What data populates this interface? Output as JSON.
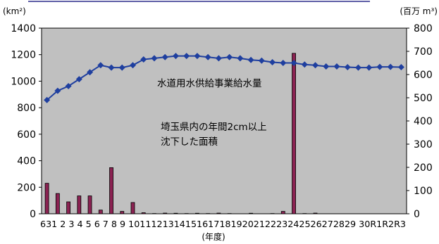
{
  "chart_data": {
    "type": "bar",
    "left_unit": "(km²)",
    "right_unit": "(百万 m³)",
    "xlabel": "(年度)",
    "left_axis": {
      "min": 0,
      "max": 1400,
      "ticks": [
        0,
        200,
        400,
        600,
        800,
        1000,
        1200,
        1400
      ]
    },
    "right_axis": {
      "min": 0,
      "max": 800,
      "ticks": [
        0,
        100,
        200,
        300,
        400,
        500,
        600,
        700,
        800
      ]
    },
    "categories": [
      "63",
      "1",
      "2",
      "3",
      "4",
      "5",
      "6",
      "7",
      "8",
      "9",
      "10",
      "11",
      "12",
      "13",
      "14",
      "15",
      "16",
      "17",
      "18",
      "19",
      "20",
      "21",
      "22",
      "23",
      "24",
      "25",
      "26",
      "27",
      "28",
      "29",
      "30",
      "R1",
      "R2",
      "R3"
    ],
    "tick_labels_text": "631 2 3 4 5 6 7 8 9 1011121314151617181920212223242526272829 30R1R2R3",
    "series": [
      {
        "name": "埼玉県内の年間2cm以上沈下した面積",
        "type": "bar",
        "axis": "left",
        "color": "#8b2252",
        "values": [
          230,
          153,
          90,
          135,
          135,
          28,
          348,
          18,
          85,
          8,
          2,
          5,
          4,
          2,
          4,
          2,
          5,
          2,
          0,
          4,
          0,
          2,
          18,
          1210,
          2,
          5,
          0,
          0,
          0,
          0,
          0,
          0,
          0,
          0
        ]
      },
      {
        "name": "水道用水供給事業給水量",
        "type": "line",
        "axis": "right",
        "color": "#1f3f9f",
        "values": [
          490,
          530,
          550,
          580,
          610,
          640,
          630,
          630,
          640,
          665,
          670,
          675,
          680,
          680,
          680,
          675,
          670,
          675,
          670,
          663,
          660,
          653,
          650,
          650,
          643,
          640,
          635,
          635,
          632,
          630,
          630,
          633,
          633,
          632
        ]
      }
    ],
    "annotations": {
      "line_label": "水道用水供給事業給水量",
      "bar_label_line1": "埼玉県内の年間2cm以上",
      "bar_label_line2": "沈下した面積"
    },
    "grid": false,
    "plot_background": "#c0c0c0"
  }
}
